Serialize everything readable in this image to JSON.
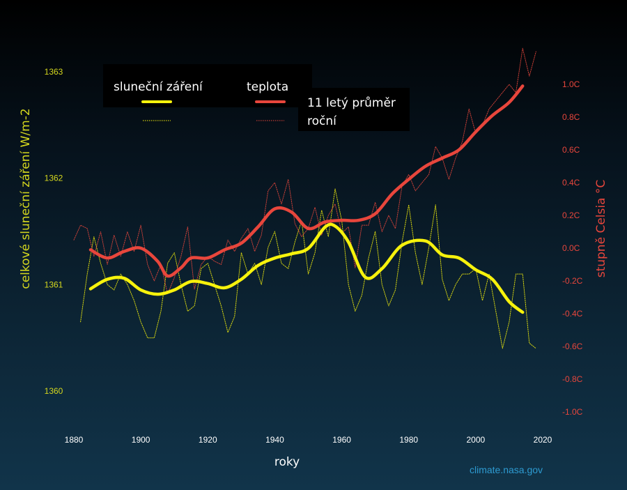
{
  "colors": {
    "solar": "#f7f20c",
    "temperature": "#e8463c",
    "left_axis": "#d4d71e",
    "right_axis": "#e8463c",
    "x_axis": "#ffffff",
    "credit": "#2d9bd1"
  },
  "legend": {
    "solar_label": "sluneční záření",
    "temperature_label": "teplota",
    "avg_label": "11  letý průměr",
    "annual_label": "roční"
  },
  "credit": "climate.nasa.gov",
  "chart_data": {
    "type": "line",
    "xlabel": "roky",
    "ylabel_left": "celkové sluneční záření W/m-2",
    "ylabel_right": "stupně Celsia °C",
    "xlim": [
      1880,
      2020
    ],
    "ylim_left": [
      1360,
      1363
    ],
    "ylim_right": [
      -1.0,
      1.0
    ],
    "x_ticks": [
      "1880",
      "1900",
      "1920",
      "1940",
      "1960",
      "1980",
      "2000",
      "2020"
    ],
    "y_left_ticks": [
      "1360",
      "1361",
      "1362",
      "1363"
    ],
    "y_right_ticks": [
      "-1.0C",
      "-0.8C",
      "-0.6C",
      "-0.4C",
      "-0.2C",
      "0.0C",
      "0.2C",
      "0.4C",
      "0.6C",
      "0.8C",
      "1.0C"
    ],
    "grid": false,
    "legend_position": "top",
    "series": [
      {
        "name": "sluneční záření",
        "axis": "left",
        "style": "11-year average",
        "x": [
          1885,
          1890,
          1895,
          1900,
          1905,
          1910,
          1915,
          1920,
          1925,
          1930,
          1935,
          1940,
          1945,
          1950,
          1955,
          1958,
          1962,
          1967,
          1972,
          1978,
          1985,
          1990,
          1995,
          2000,
          2005,
          2010,
          2014
        ],
        "values": [
          1360.96,
          1361.05,
          1361.06,
          1360.95,
          1360.91,
          1360.95,
          1361.03,
          1361.01,
          1360.97,
          1361.05,
          1361.18,
          1361.25,
          1361.29,
          1361.34,
          1361.54,
          1361.55,
          1361.4,
          1361.07,
          1361.15,
          1361.37,
          1361.41,
          1361.28,
          1361.25,
          1361.14,
          1361.05,
          1360.84,
          1360.74
        ]
      },
      {
        "name": "teplota",
        "axis": "right",
        "style": "11-year average",
        "x": [
          1885,
          1890,
          1895,
          1900,
          1905,
          1908,
          1912,
          1915,
          1920,
          1925,
          1930,
          1935,
          1940,
          1945,
          1950,
          1955,
          1960,
          1965,
          1970,
          1975,
          1980,
          1985,
          1990,
          1995,
          2000,
          2005,
          2010,
          2014
        ],
        "values": [
          -0.01,
          -0.06,
          -0.02,
          0.0,
          -0.08,
          -0.17,
          -0.12,
          -0.06,
          -0.06,
          -0.01,
          0.03,
          0.13,
          0.24,
          0.22,
          0.12,
          0.16,
          0.17,
          0.17,
          0.21,
          0.33,
          0.42,
          0.5,
          0.55,
          0.6,
          0.71,
          0.81,
          0.89,
          0.99
        ]
      },
      {
        "name": "sluneční záření",
        "axis": "left",
        "style": "annual",
        "x": [
          1882,
          1884,
          1886,
          1888,
          1890,
          1892,
          1894,
          1896,
          1898,
          1900,
          1902,
          1904,
          1906,
          1908,
          1910,
          1912,
          1914,
          1916,
          1918,
          1920,
          1922,
          1924,
          1926,
          1928,
          1930,
          1932,
          1934,
          1936,
          1938,
          1940,
          1942,
          1944,
          1946,
          1948,
          1950,
          1952,
          1954,
          1956,
          1958,
          1960,
          1962,
          1964,
          1966,
          1968,
          1970,
          1972,
          1974,
          1976,
          1978,
          1980,
          1982,
          1984,
          1986,
          1988,
          1990,
          1992,
          1994,
          1996,
          1998,
          2000,
          2002,
          2004,
          2006,
          2008,
          2010,
          2012,
          2014,
          2016,
          2018
        ],
        "values": [
          1360.65,
          1361.1,
          1361.45,
          1361.2,
          1361.0,
          1360.95,
          1361.1,
          1361.0,
          1360.85,
          1360.65,
          1360.5,
          1360.5,
          1360.75,
          1361.2,
          1361.3,
          1361.0,
          1360.75,
          1360.8,
          1361.15,
          1361.2,
          1361.0,
          1360.8,
          1360.55,
          1360.7,
          1361.3,
          1361.1,
          1361.2,
          1361.0,
          1361.35,
          1361.5,
          1361.2,
          1361.15,
          1361.4,
          1361.6,
          1361.1,
          1361.3,
          1361.7,
          1361.45,
          1361.9,
          1361.6,
          1361.0,
          1360.75,
          1360.9,
          1361.25,
          1361.5,
          1361.0,
          1360.8,
          1360.95,
          1361.4,
          1361.75,
          1361.3,
          1361.0,
          1361.35,
          1361.75,
          1361.05,
          1360.85,
          1361.0,
          1361.1,
          1361.1,
          1361.15,
          1360.85,
          1361.1,
          1360.75,
          1360.4,
          1360.65,
          1361.1,
          1361.1,
          1360.45,
          1360.4
        ]
      },
      {
        "name": "teplota",
        "axis": "right",
        "style": "annual",
        "x": [
          1880,
          1882,
          1884,
          1886,
          1888,
          1890,
          1892,
          1894,
          1896,
          1898,
          1900,
          1902,
          1904,
          1906,
          1908,
          1910,
          1912,
          1914,
          1916,
          1918,
          1920,
          1922,
          1924,
          1926,
          1928,
          1930,
          1932,
          1934,
          1936,
          1938,
          1940,
          1942,
          1944,
          1946,
          1948,
          1950,
          1952,
          1954,
          1956,
          1958,
          1960,
          1962,
          1964,
          1966,
          1968,
          1970,
          1972,
          1974,
          1976,
          1978,
          1980,
          1982,
          1984,
          1986,
          1988,
          1990,
          1992,
          1994,
          1996,
          1998,
          2000,
          2002,
          2004,
          2006,
          2008,
          2010,
          2012,
          2014,
          2016,
          2018
        ],
        "values": [
          0.05,
          0.14,
          0.12,
          -0.05,
          0.1,
          -0.1,
          0.08,
          -0.05,
          0.1,
          -0.02,
          0.14,
          -0.1,
          -0.2,
          -0.1,
          -0.28,
          -0.18,
          -0.05,
          0.13,
          -0.25,
          -0.1,
          -0.05,
          -0.08,
          -0.1,
          0.05,
          -0.02,
          0.06,
          0.12,
          -0.02,
          0.08,
          0.35,
          0.4,
          0.27,
          0.42,
          0.15,
          0.07,
          0.12,
          0.25,
          0.08,
          0.2,
          0.27,
          0.09,
          0.13,
          -0.12,
          0.14,
          0.14,
          0.28,
          0.1,
          0.2,
          0.12,
          0.38,
          0.45,
          0.35,
          0.4,
          0.45,
          0.62,
          0.55,
          0.42,
          0.55,
          0.65,
          0.85,
          0.7,
          0.75,
          0.85,
          0.9,
          0.95,
          1.0,
          0.95,
          1.22,
          1.05,
          1.2
        ]
      }
    ]
  }
}
